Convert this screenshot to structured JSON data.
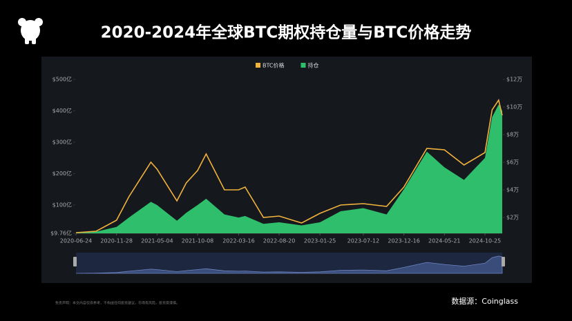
{
  "chart_data": {
    "type": "line",
    "title": "2020-2024年全球BTC期权持仓量与BTC价格走势",
    "x": [
      "2020-06-24",
      "2020-09-10",
      "2020-11-28",
      "2021-01-15",
      "2021-04-10",
      "2021-05-04",
      "2021-07-20",
      "2021-08-25",
      "2021-10-08",
      "2021-11-10",
      "2022-01-20",
      "2022-03-16",
      "2022-04-10",
      "2022-06-20",
      "2022-08-20",
      "2022-11-15",
      "2023-01-25",
      "2023-04-15",
      "2023-07-12",
      "2023-10-10",
      "2023-12-16",
      "2024-03-14",
      "2024-05-21",
      "2024-08-05",
      "2024-10-25",
      "2024-11-22",
      "2024-12-17",
      "2024-12-31"
    ],
    "xlim": [
      "2020-06-24",
      "2024-12-31"
    ],
    "xticks": [
      "2020-06-24",
      "2020-11-28",
      "2021-05-04",
      "2021-10-08",
      "2022-03-16",
      "2022-08-20",
      "2023-01-25",
      "2023-07-12",
      "2023-12-16",
      "2024-05-21",
      "2024-10-25"
    ],
    "series": [
      {
        "name": "持仓",
        "color": "#2fbf6c",
        "type": "area",
        "values": [
          10,
          15,
          30,
          60,
          110,
          100,
          50,
          75,
          100,
          120,
          70,
          60,
          65,
          40,
          45,
          35,
          45,
          80,
          90,
          70,
          150,
          270,
          220,
          180,
          250,
          380,
          420,
          400
        ]
      },
      {
        "name": "BTC价格",
        "color": "#f2b33d",
        "type": "line",
        "axis": "y2",
        "values": [
          0.9,
          1.0,
          1.8,
          3.5,
          6.0,
          5.5,
          3.2,
          4.5,
          5.4,
          6.6,
          4.0,
          4.0,
          4.2,
          2.0,
          2.1,
          1.6,
          2.3,
          2.9,
          3.0,
          2.8,
          4.2,
          7.0,
          6.9,
          5.8,
          6.7,
          9.8,
          10.5,
          9.4
        ]
      }
    ],
    "ylim": [
      9.76,
      500
    ],
    "yticks": [
      {
        "value": 9.76,
        "label": "$9.76亿"
      },
      {
        "value": 100,
        "label": "$100亿"
      },
      {
        "value": 200,
        "label": "$200亿"
      },
      {
        "value": 300,
        "label": "$300亿"
      },
      {
        "value": 400,
        "label": "$400亿"
      },
      {
        "value": 500,
        "label": "$500亿"
      }
    ],
    "y2lim": [
      0.85,
      12
    ],
    "y2ticks": [
      {
        "value": 2,
        "label": "$2万"
      },
      {
        "value": 4,
        "label": "$4万"
      },
      {
        "value": 6,
        "label": "$6万"
      },
      {
        "value": 8,
        "label": "$8万"
      },
      {
        "value": 10,
        "label": "$10万"
      },
      {
        "value": 12,
        "label": "$12万"
      }
    ],
    "watermark": "coinglass",
    "source": "数据源：Coinglass",
    "disclaimer": "免责声明：本文内容仅供参考，不构成任何投资建议，市场有风险，投资需谨慎。"
  }
}
